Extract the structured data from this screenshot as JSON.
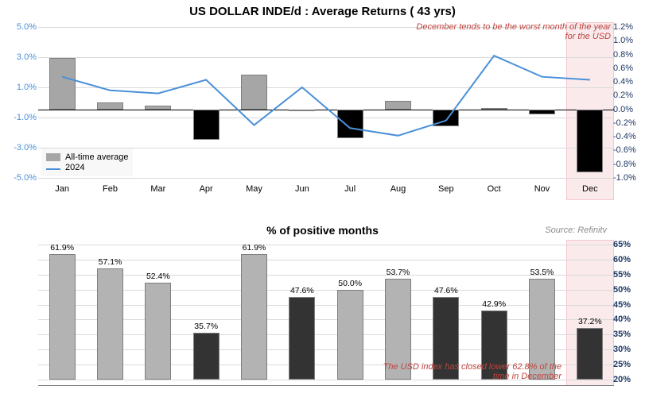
{
  "title": "US DOLLAR INDE/d : Average Returns ( 43 yrs)",
  "title2": "% of positive months",
  "source": "Source: Refinitv",
  "months": [
    "Jan",
    "Feb",
    "Mar",
    "Apr",
    "May",
    "Jun",
    "Jul",
    "Aug",
    "Sep",
    "Oct",
    "Nov",
    "Dec"
  ],
  "chart1": {
    "left_ticks": [
      "5.0%",
      "3.0%",
      "1.0%",
      "-1.0%",
      "-3.0%",
      "-5.0%"
    ],
    "left_vals": [
      5,
      3,
      1,
      -1,
      -3,
      -5
    ],
    "left_min": -5,
    "left_max": 5,
    "right_ticks": [
      "1.2%",
      "1.0%",
      "0.8%",
      "0.6%",
      "0.4%",
      "0.2%",
      "0.0%",
      "-0.2%",
      "-0.4%",
      "-0.6%",
      "-0.8%",
      "-1.0%"
    ],
    "right_vals": [
      1.2,
      1.0,
      0.8,
      0.6,
      0.4,
      0.2,
      0.0,
      -0.2,
      -0.4,
      -0.6,
      -0.8,
      -1.0
    ],
    "right_min": -1.0,
    "right_max": 1.2,
    "bars": [
      0.75,
      0.1,
      0.05,
      -0.45,
      0.5,
      -0.03,
      -0.42,
      0.12,
      -0.25,
      0.02,
      -0.07,
      -0.92
    ],
    "bar_color_pos": "#a6a6a6",
    "bar_color_neg": "#000000",
    "line": [
      1.7,
      0.8,
      0.6,
      1.5,
      -1.5,
      1.0,
      -1.7,
      -2.2,
      -1.2,
      3.1,
      1.7,
      1.5
    ],
    "line_color": "#4a90d9",
    "legend": [
      {
        "label": "All-time average",
        "color": "#a6a6a6",
        "type": "bar"
      },
      {
        "label": "2024",
        "color": "#4a90d9",
        "type": "line"
      }
    ],
    "annotation": "December tends to be the worst month of the year for the USD",
    "highlight_index": 11,
    "grid_color": "#d9d9d9",
    "left_color": "#4a90d9",
    "right_color": "#1f3864"
  },
  "chart2": {
    "right_ticks": [
      "65%",
      "60%",
      "55%",
      "50%",
      "45%",
      "40%",
      "35%",
      "30%",
      "25%",
      "20%"
    ],
    "right_vals": [
      65,
      60,
      55,
      50,
      45,
      40,
      35,
      30,
      25,
      20
    ],
    "min": 20,
    "max": 65,
    "bars": [
      61.9,
      57.1,
      52.4,
      35.7,
      61.9,
      47.6,
      50.0,
      53.7,
      47.6,
      42.9,
      53.5,
      37.2
    ],
    "bar_color_high": "#b3b3b3",
    "bar_color_low": "#333333",
    "annotation": "The USD index has closed lower 62.8% of the time in December",
    "highlight_index": 11,
    "grid_color": "#d9d9d9",
    "label_color_high": "#000",
    "label_color_low": "#000",
    "right_color": "#1f3864"
  }
}
